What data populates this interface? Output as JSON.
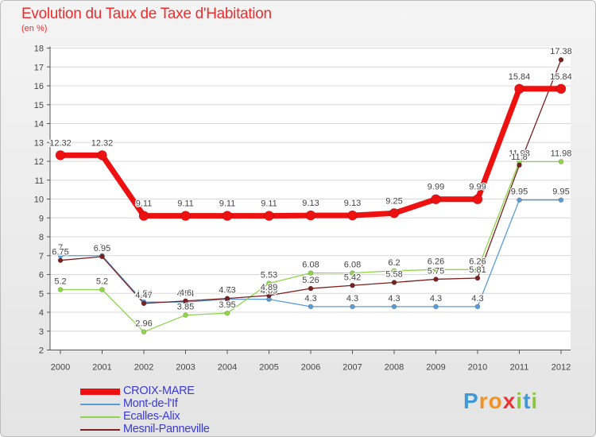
{
  "title": "Evolution du Taux de Taxe d'Habitation",
  "subtitle": "(en %)",
  "brand": {
    "letters": [
      "P",
      "r",
      "o",
      "x",
      "i",
      "t",
      "i"
    ],
    "colors": [
      "#3d9ad8",
      "#f19222",
      "#f19222",
      "#e93535",
      "#8cc63f",
      "#3d9ad8",
      "#8cc63f"
    ]
  },
  "chart_data": {
    "type": "line",
    "title": "Evolution du Taux de Taxe d'Habitation",
    "ylabel": "(en %)",
    "xlabel": "",
    "ylim": [
      2,
      18
    ],
    "categories": [
      "2000",
      "2001",
      "2002",
      "2003",
      "2004",
      "2005",
      "2006",
      "2007",
      "2008",
      "2009",
      "2010",
      "2011",
      "2012"
    ],
    "yticks": [
      "2",
      "3",
      "4",
      "5",
      "6",
      "7",
      "8",
      "9",
      "10",
      "11",
      "12",
      "13",
      "14",
      "15",
      "16",
      "17",
      "18"
    ],
    "series": [
      {
        "name": "Mont-de-l'If",
        "color": "#5b9bd5",
        "values": [
          7,
          7,
          4.54,
          4.54,
          4.69,
          4.69,
          4.3,
          4.3,
          4.3,
          4.3,
          4.3,
          9.95,
          9.95
        ],
        "labels": [
          "7",
          "7",
          "4.54",
          "4.54",
          "4.69",
          "4.69",
          "4.3",
          "4.3",
          "4.3",
          "4.3",
          "4.3",
          "9.95",
          "9.95"
        ]
      },
      {
        "name": "Ecalles-Alix",
        "color": "#8fd44a",
        "values": [
          5.2,
          5.2,
          2.96,
          3.85,
          3.95,
          5.53,
          6.08,
          6.08,
          6.2,
          6.26,
          6.26,
          11.98,
          11.98
        ],
        "labels": [
          "5.2",
          "5.2",
          "2.96",
          "3.85",
          "3.95",
          "5.53",
          "6.08",
          "6.08",
          "6.2",
          "6.26",
          "6.26",
          "11.98",
          "11.98"
        ]
      },
      {
        "name": "Mesnil-Panneville",
        "color": "#7a2020",
        "values": [
          6.75,
          6.95,
          4.47,
          4.6,
          4.73,
          4.89,
          5.26,
          5.42,
          5.58,
          5.75,
          5.81,
          11.8,
          17.38
        ],
        "labels": [
          "6.75",
          "6.95",
          "4.47",
          "4.6",
          "4.73",
          "4.89",
          "5.26",
          "5.42",
          "5.58",
          "5.75",
          "5.81",
          "11.8",
          "17.38"
        ]
      },
      {
        "name": "CROIX-MARE",
        "color": "#ee1111",
        "values": [
          12.32,
          12.32,
          9.11,
          9.11,
          9.11,
          9.11,
          9.13,
          9.13,
          9.25,
          9.99,
          9.99,
          15.84,
          15.84
        ],
        "labels": [
          "12.32",
          "12.32",
          "9.11",
          "9.11",
          "9.11",
          "9.11",
          "9.13",
          "9.13",
          "9.25",
          "9.99",
          "9.99",
          "15.84",
          "15.84"
        ]
      }
    ],
    "legend": [
      "CROIX-MARE",
      "Mont-de-l'If",
      "Ecalles-Alix",
      "Mesnil-Panneville"
    ]
  }
}
